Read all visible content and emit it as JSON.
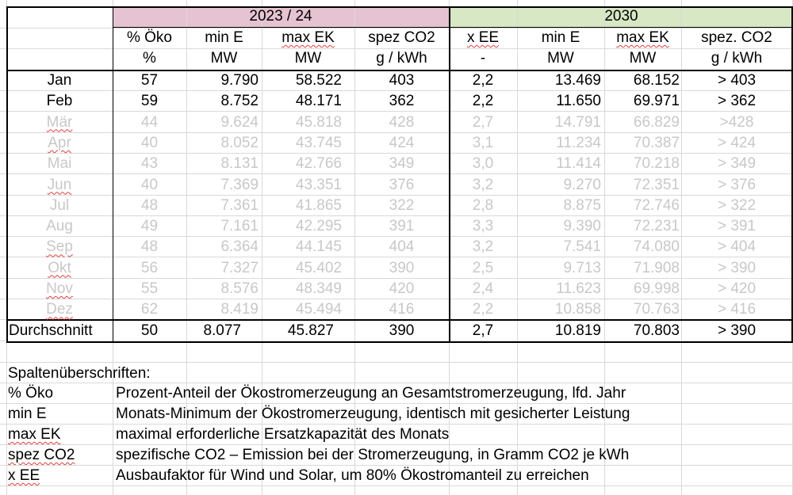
{
  "header": {
    "group_2023": "2023 / 24",
    "group_2030": "2030",
    "col_labels": [
      "% Öko",
      "min E",
      "max EK",
      "spez CO2",
      "x EE",
      "min E",
      "max EK",
      "spez. CO2"
    ],
    "col_units": [
      "%",
      "MW",
      "MW",
      "g / kWh",
      "-",
      "MW",
      "MW",
      "g / kWh"
    ],
    "colors": {
      "group_2023_bg": "#e6c3d0",
      "group_2030_bg": "#d8e7c4"
    }
  },
  "rows": [
    {
      "month": "Jan",
      "oko": "57",
      "minE": "9.790",
      "maxEK": "58.522",
      "co2": "403",
      "xee": "2,2",
      "minE30": "13.469",
      "maxEK30": "68.152",
      "co230": "> 403",
      "muted": false
    },
    {
      "month": "Feb",
      "oko": "59",
      "minE": "8.752",
      "maxEK": "48.171",
      "co2": "362",
      "xee": "2,2",
      "minE30": "11.650",
      "maxEK30": "69.971",
      "co230": "> 362",
      "muted": false
    },
    {
      "month": "Mär",
      "oko": "44",
      "minE": "9.624",
      "maxEK": "45.818",
      "co2": "428",
      "xee": "2,7",
      "minE30": "14.791",
      "maxEK30": "66.829",
      "co230": ">428",
      "muted": true
    },
    {
      "month": "Apr",
      "oko": "40",
      "minE": "8.052",
      "maxEK": "43.745",
      "co2": "424",
      "xee": "3,1",
      "minE30": "11.234",
      "maxEK30": "70.387",
      "co230": "> 424",
      "muted": true
    },
    {
      "month": "Mai",
      "oko": "43",
      "minE": "8.131",
      "maxEK": "42.766",
      "co2": "349",
      "xee": "3,0",
      "minE30": "11.414",
      "maxEK30": "70.218",
      "co230": "> 349",
      "muted": true
    },
    {
      "month": "Jun",
      "oko": "40",
      "minE": "7.369",
      "maxEK": "43.351",
      "co2": "376",
      "xee": "3,2",
      "minE30": "9.270",
      "maxEK30": "72.351",
      "co230": "> 376",
      "muted": true
    },
    {
      "month": "Jul",
      "oko": "48",
      "minE": "7.361",
      "maxEK": "41.865",
      "co2": "322",
      "xee": "2,8",
      "minE30": "8.875",
      "maxEK30": "72.746",
      "co230": "> 322",
      "muted": true
    },
    {
      "month": "Aug",
      "oko": "49",
      "minE": "7.161",
      "maxEK": "42.295",
      "co2": "391",
      "xee": "3,3",
      "minE30": "9.390",
      "maxEK30": "72.231",
      "co230": "> 391",
      "muted": true
    },
    {
      "month": "Sep",
      "oko": "48",
      "minE": "6.364",
      "maxEK": "44.145",
      "co2": "404",
      "xee": "3,2",
      "minE30": "7.541",
      "maxEK30": "74.080",
      "co230": "> 404",
      "muted": true
    },
    {
      "month": "Okt",
      "oko": "56",
      "minE": "7.327",
      "maxEK": "45.402",
      "co2": "390",
      "xee": "2,5",
      "minE30": "9.713",
      "maxEK30": "71.908",
      "co230": "> 390",
      "muted": true
    },
    {
      "month": "Nov",
      "oko": "55",
      "minE": "8.576",
      "maxEK": "48.349",
      "co2": "420",
      "xee": "2,4",
      "minE30": "11.623",
      "maxEK30": "69.998",
      "co230": "> 420",
      "muted": true
    },
    {
      "month": "Dez",
      "oko": "62",
      "minE": "8.419",
      "maxEK": "45.494",
      "co2": "416",
      "xee": "2,2",
      "minE30": "10.858",
      "maxEK30": "70.763",
      "co230": "> 416",
      "muted": true
    }
  ],
  "average": {
    "label": "Durchschnitt",
    "oko": "50",
    "minE": "8.077",
    "maxEK": "45.827",
    "co2": "390",
    "xee": "2,7",
    "minE30": "10.819",
    "maxEK30": "70.803",
    "co230": "> 390"
  },
  "legend": {
    "title": "Spaltenüberschriften:",
    "items": [
      {
        "term": "% Öko",
        "desc": "Prozent-Anteil der Ökostromerzeugung an Gesamtstromerzeugung, lfd. Jahr"
      },
      {
        "term": "min E",
        "desc": "Monats-Minimum der Ökostromerzeugung, identisch mit gesicherter Leistung"
      },
      {
        "term": "max EK",
        "desc": "maximal erforderliche Ersatzkapazität des Monats"
      },
      {
        "term": "spez CO2",
        "desc": "spezifische CO2 – Emission bei der Stromerzeugung, in Gramm CO2 je kWh"
      },
      {
        "term": "x EE",
        "desc": "Ausbaufaktor für Wind und Solar, um 80% Ökostromanteil zu erreichen"
      }
    ]
  }
}
